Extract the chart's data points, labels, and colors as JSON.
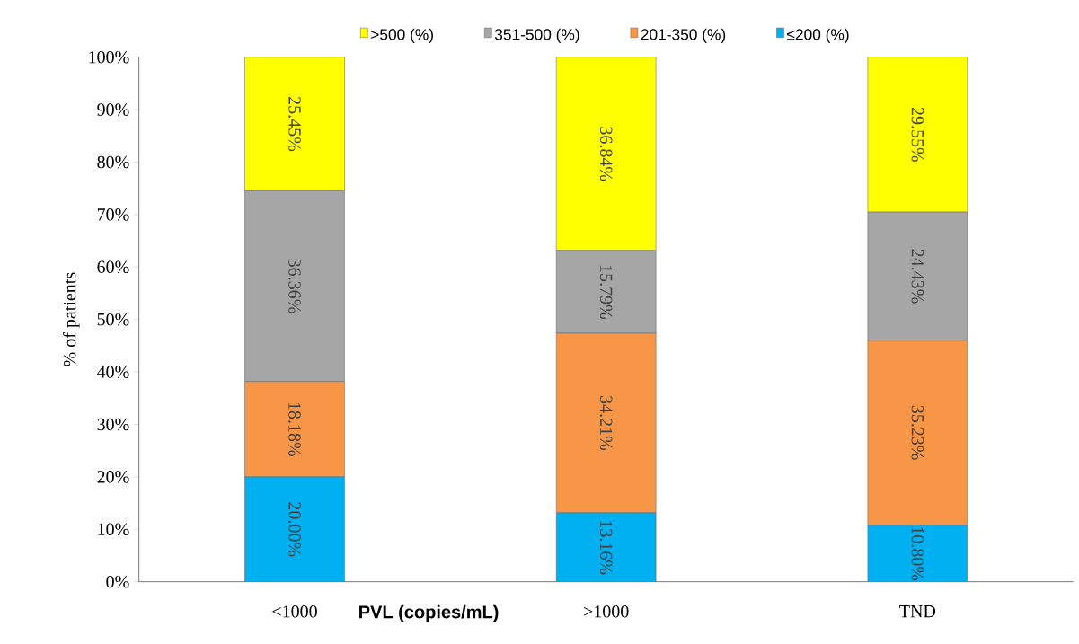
{
  "chart_data": {
    "type": "bar",
    "stacked": true,
    "categories": [
      "<1000",
      ">1000",
      "TND"
    ],
    "xlabel": "**PVL (copies/mL)**",
    "ylabel": "% of patients",
    "ylim": [
      0,
      100
    ],
    "yticks": [
      {
        "value": 0,
        "label": "0%"
      },
      {
        "value": 10,
        "label": "10%"
      },
      {
        "value": 20,
        "label": "20%"
      },
      {
        "value": 30,
        "label": "30%"
      },
      {
        "value": 40,
        "label": "40%"
      },
      {
        "value": 50,
        "label": "50%"
      },
      {
        "value": 60,
        "label": "60%"
      },
      {
        "value": 70,
        "label": "70%"
      },
      {
        "value": 80,
        "label": "80%"
      },
      {
        "value": 90,
        "label": "90%"
      },
      {
        "value": 100,
        "label": "100%"
      }
    ],
    "legend": "top",
    "series": [
      {
        "name": "≤200 (%)",
        "color": "#00b0f0",
        "values": [
          20.0,
          13.16,
          10.8
        ],
        "value_labels": [
          "20.00%",
          "13.16%",
          "10.80%"
        ]
      },
      {
        "name": "201-350 (%)",
        "color": "#f79646",
        "values": [
          18.18,
          34.21,
          35.23
        ],
        "value_labels": [
          "18.18%",
          "34.21%",
          "35.23%"
        ]
      },
      {
        "name": "351-500 (%)",
        "color": "#a6a6a6",
        "values": [
          36.36,
          15.79,
          24.43
        ],
        "value_labels": [
          "36.36%",
          "15.79%",
          "24.43%"
        ]
      },
      {
        "name": ">500 (%)",
        "color": "#ffff00",
        "values": [
          25.45,
          36.84,
          29.55
        ],
        "value_labels": [
          "25.45%",
          "36.84%",
          "29.55%"
        ]
      }
    ]
  }
}
